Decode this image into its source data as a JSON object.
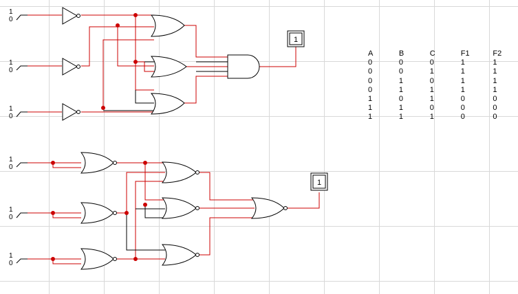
{
  "switches": [
    {
      "id": "sw-top-a",
      "high": "1",
      "low": "0"
    },
    {
      "id": "sw-top-b",
      "high": "1",
      "low": "0"
    },
    {
      "id": "sw-top-c",
      "high": "1",
      "low": "0"
    },
    {
      "id": "sw-bot-a",
      "high": "1",
      "low": "0"
    },
    {
      "id": "sw-bot-b",
      "high": "1",
      "low": "0"
    },
    {
      "id": "sw-bot-c",
      "high": "1",
      "low": "0"
    }
  ],
  "outputs": {
    "top": "1",
    "bottom": "1"
  },
  "truth_table": {
    "headers": [
      "A",
      "B",
      "C",
      "F1",
      "F2"
    ],
    "rows": [
      [
        "0",
        "0",
        "0",
        "1",
        "1"
      ],
      [
        "0",
        "0",
        "1",
        "1",
        "1"
      ],
      [
        "0",
        "1",
        "0",
        "1",
        "1"
      ],
      [
        "0",
        "1",
        "1",
        "1",
        "1"
      ],
      [
        "1",
        "0",
        "1",
        "0",
        "0"
      ],
      [
        "1",
        "1",
        "0",
        "0",
        "0"
      ],
      [
        "1",
        "1",
        "1",
        "0",
        "0"
      ]
    ]
  },
  "colors": {
    "wire_active": "#cc0000",
    "wire_idle": "#000000",
    "grid": "#d8d8d8"
  }
}
